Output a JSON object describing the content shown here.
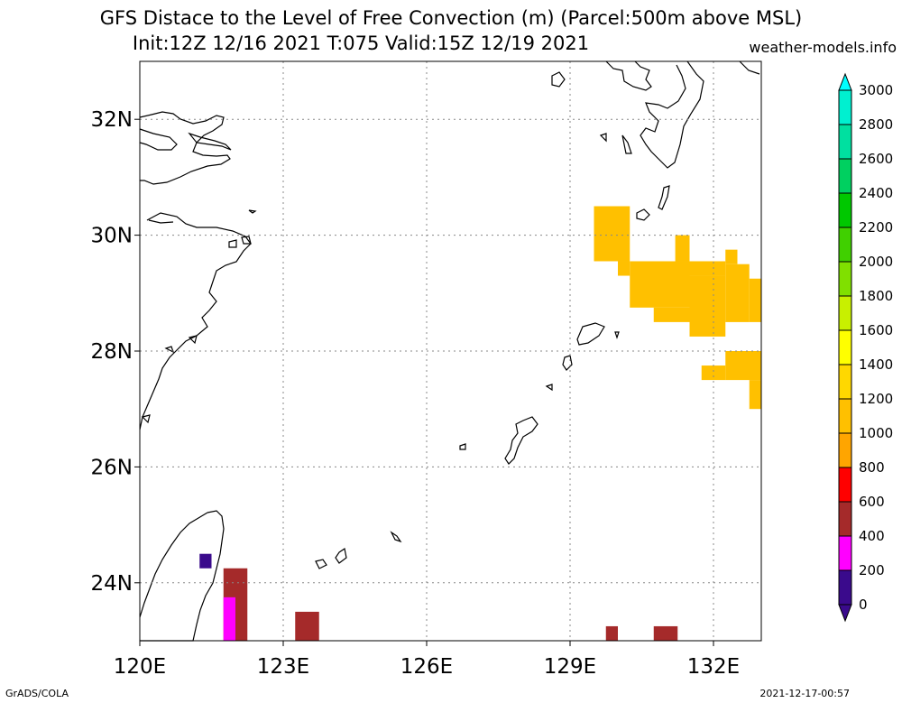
{
  "title": {
    "line1": "GFS Distace to the Level of Free Convection (m) (Parcel:500m above MSL)",
    "line2": "Init:12Z 12/16 2021 T:075 Valid:15Z 12/19 2021",
    "credit": "weather-models.info"
  },
  "map": {
    "lon_range": [
      120,
      133
    ],
    "lat_range": [
      23,
      33
    ],
    "lon_ticks": [
      {
        "value": 120,
        "label": "120E"
      },
      {
        "value": 123,
        "label": "123E"
      },
      {
        "value": 126,
        "label": "126E"
      },
      {
        "value": 129,
        "label": "129E"
      },
      {
        "value": 132,
        "label": "132E"
      }
    ],
    "lat_ticks": [
      {
        "value": 24,
        "label": "24N"
      },
      {
        "value": 26,
        "label": "26N"
      },
      {
        "value": 28,
        "label": "28N"
      },
      {
        "value": 30,
        "label": "30N"
      },
      {
        "value": 32,
        "label": "32N"
      }
    ],
    "grid": true,
    "fields": [
      {
        "lon": [
          129.5,
          130.25
        ],
        "lat": [
          29.55,
          30.5
        ],
        "value": 1000
      },
      {
        "lon": [
          130.0,
          130.25
        ],
        "lat": [
          29.3,
          29.55
        ],
        "value": 1000
      },
      {
        "lon": [
          130.25,
          131.5
        ],
        "lat": [
          28.75,
          29.55
        ],
        "value": 1000
      },
      {
        "lon": [
          130.75,
          131.5
        ],
        "lat": [
          28.5,
          28.75
        ],
        "value": 1000
      },
      {
        "lon": [
          131.2,
          131.5
        ],
        "lat": [
          29.55,
          30.0
        ],
        "value": 1000
      },
      {
        "lon": [
          131.5,
          132.25
        ],
        "lat": [
          28.25,
          29.3
        ],
        "value": 1000
      },
      {
        "lon": [
          131.5,
          132.25
        ],
        "lat": [
          29.3,
          29.55
        ],
        "value": 1000
      },
      {
        "lon": [
          132.25,
          132.75
        ],
        "lat": [
          28.5,
          29.5
        ],
        "value": 1000
      },
      {
        "lon": [
          132.25,
          132.5
        ],
        "lat": [
          29.5,
          29.75
        ],
        "value": 1000
      },
      {
        "lon": [
          132.75,
          133.0
        ],
        "lat": [
          28.5,
          29.25
        ],
        "value": 1000
      },
      {
        "lon": [
          131.75,
          132.25
        ],
        "lat": [
          27.5,
          27.75
        ],
        "value": 1000
      },
      {
        "lon": [
          132.25,
          133.0
        ],
        "lat": [
          27.5,
          28.0
        ],
        "value": 1000
      },
      {
        "lon": [
          132.75,
          133.0
        ],
        "lat": [
          27.0,
          27.5
        ],
        "value": 1000
      },
      {
        "lon": [
          121.75,
          122.25
        ],
        "lat": [
          23.0,
          24.25
        ],
        "value": 500
      },
      {
        "lon": [
          121.75,
          122.0
        ],
        "lat": [
          23.0,
          23.75
        ],
        "value": 300
      },
      {
        "lon": [
          123.25,
          123.75
        ],
        "lat": [
          23.0,
          23.5
        ],
        "value": 500
      },
      {
        "lon": [
          129.75,
          130.0
        ],
        "lat": [
          23.0,
          23.25
        ],
        "value": 500
      },
      {
        "lon": [
          130.75,
          131.25
        ],
        "lat": [
          23.0,
          23.25
        ],
        "value": 500
      },
      {
        "lon": [
          121.25,
          121.5
        ],
        "lat": [
          24.25,
          24.5
        ],
        "value": 100
      }
    ]
  },
  "colorbar": {
    "levels": [
      "0",
      "200",
      "400",
      "600",
      "800",
      "1000",
      "1200",
      "1400",
      "1600",
      "1800",
      "2000",
      "2200",
      "2400",
      "2600",
      "2800",
      "3000"
    ],
    "colors": [
      "#3a0a8c",
      "#ff00ff",
      "#a52a2a",
      "#ff0000",
      "#ffa500",
      "#ffc000",
      "#ffd800",
      "#ffff00",
      "#c8f000",
      "#80e000",
      "#40d000",
      "#00c800",
      "#00d060",
      "#00e0a0",
      "#00f0d0",
      "#00ffff"
    ],
    "low_color": "#3a0a8c",
    "high_color": "#00ffff"
  },
  "footer": {
    "left": "GrADS/COLA",
    "right": "2021-12-17-00:57"
  }
}
